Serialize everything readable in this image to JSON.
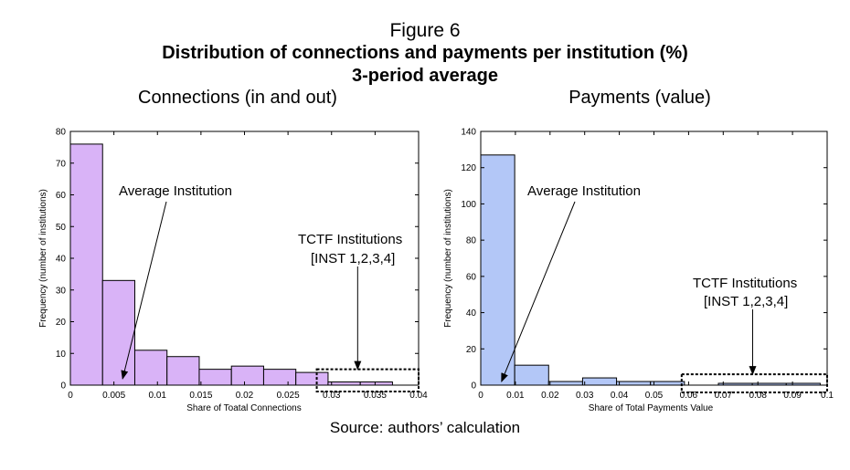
{
  "figure": {
    "label": "Figure 6",
    "title": "Distribution of connections and payments per institution (%)",
    "subtitle": "3-period average",
    "source": "Source: authors’ calculation"
  },
  "chart_data": [
    {
      "type": "bar",
      "title": "Connections (in and out)",
      "xlabel": "Share of Toatal Connections",
      "ylabel": "Frequency (number of institutions)",
      "xlim": [
        0,
        0.04
      ],
      "ylim": [
        0,
        80
      ],
      "xticks": [
        0,
        0.005,
        0.01,
        0.015,
        0.02,
        0.025,
        0.03,
        0.035,
        0.04
      ],
      "xtick_labels": [
        "0",
        "0.005",
        "0.01",
        "0.015",
        "0.02",
        "0.025",
        "0.03",
        "0.035",
        "0.04"
      ],
      "yticks": [
        0,
        10,
        20,
        30,
        40,
        50,
        60,
        70,
        80
      ],
      "bin_edges": [
        0,
        0.0037,
        0.0074,
        0.0111,
        0.0148,
        0.0185,
        0.0222,
        0.0259,
        0.0296,
        0.0333,
        0.037
      ],
      "values": [
        76,
        33,
        11,
        9,
        5,
        6,
        5,
        4,
        1,
        1
      ],
      "bar_color": "#d9b3f7",
      "annotations": [
        {
          "text": "Average Institution",
          "arrow_to": [
            0.006,
            2
          ]
        },
        {
          "text": "TCTF Institutions",
          "text2": "[INST 1,2,3,4]",
          "arrow_to": [
            0.033,
            5
          ],
          "box_x": [
            0.0283,
            0.04
          ],
          "box_y": [
            -2,
            5
          ]
        }
      ],
      "grid": false
    },
    {
      "type": "bar",
      "title": "Payments (value)",
      "xlabel": "Share of Total Payments Value",
      "ylabel": "Frequency (number of institutions)",
      "xlim": [
        0,
        0.1
      ],
      "ylim": [
        0,
        140
      ],
      "xticks": [
        0,
        0.01,
        0.02,
        0.03,
        0.04,
        0.05,
        0.06,
        0.07,
        0.08,
        0.09,
        0.1
      ],
      "xtick_labels": [
        "0",
        "0.01",
        "0.02",
        "0.03",
        "0.04",
        "0.05",
        "0.06",
        "0.07",
        "0.08",
        "0.09",
        "0.1"
      ],
      "yticks": [
        0,
        20,
        40,
        60,
        80,
        100,
        120,
        140
      ],
      "bin_edges": [
        0,
        0.0098,
        0.0196,
        0.0294,
        0.0392,
        0.049,
        0.0588,
        0.0686,
        0.0784,
        0.0882,
        0.098
      ],
      "values": [
        127,
        11,
        2,
        4,
        2,
        2,
        0,
        1,
        1,
        1
      ],
      "bar_color": "#b3c7f7",
      "annotations": [
        {
          "text": "Average Institution",
          "arrow_to": [
            0.006,
            2
          ]
        },
        {
          "text": "TCTF Institutions",
          "text2": "[INST 1,2,3,4]",
          "arrow_to": [
            0.0785,
            6
          ],
          "box_x": [
            0.058,
            0.1
          ],
          "box_y": [
            -4,
            6
          ]
        }
      ],
      "grid": false
    }
  ]
}
